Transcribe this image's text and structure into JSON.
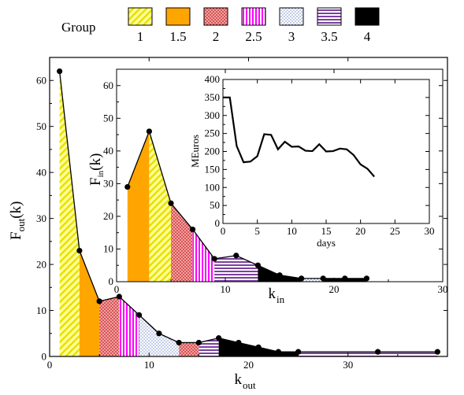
{
  "chart_data": {
    "legend": {
      "title": "Group",
      "groups": [
        {
          "label": "1",
          "value": 1,
          "fill": "#ffff80",
          "pattern": "diag-yellow"
        },
        {
          "label": "1.5",
          "value": 1.5,
          "fill": "#ffa500",
          "pattern": "solid-orange"
        },
        {
          "label": "2",
          "value": 2,
          "fill": "#f08080",
          "pattern": "dots-red"
        },
        {
          "label": "2.5",
          "value": 2.5,
          "fill": "#ff00ff",
          "pattern": "vlines-magenta"
        },
        {
          "label": "3",
          "value": 3,
          "fill": "#d0d8f0",
          "pattern": "dots-blue"
        },
        {
          "label": "3.5",
          "value": 3.5,
          "fill": "#7b3fa0",
          "pattern": "hlines-purple"
        },
        {
          "label": "4",
          "value": 4,
          "fill": "#000000",
          "pattern": "solid-black"
        }
      ]
    },
    "charts": [
      {
        "id": "main",
        "type": "area",
        "xlabel": "k",
        "xlabel_sub": "out",
        "ylabel": "F",
        "ylabel_sub": "out",
        "ylabel_suffix": "(k)",
        "xlim": [
          0,
          40
        ],
        "ylim": [
          0,
          65
        ],
        "xticks": [
          0,
          10,
          20,
          30,
          40
        ],
        "xtick_labels": [
          "0",
          "10",
          "20",
          "30",
          ""
        ],
        "yticks": [
          0,
          10,
          20,
          30,
          40,
          50,
          60
        ],
        "points": [
          {
            "x": 1,
            "y": 62
          },
          {
            "x": 3,
            "y": 23
          },
          {
            "x": 5,
            "y": 12
          },
          {
            "x": 7,
            "y": 13
          },
          {
            "x": 9,
            "y": 9
          },
          {
            "x": 11,
            "y": 5
          },
          {
            "x": 13,
            "y": 3
          },
          {
            "x": 15,
            "y": 3
          },
          {
            "x": 17,
            "y": 4
          },
          {
            "x": 19,
            "y": 3
          },
          {
            "x": 21,
            "y": 2
          },
          {
            "x": 23,
            "y": 1
          },
          {
            "x": 25,
            "y": 1
          },
          {
            "x": 33,
            "y": 1
          },
          {
            "x": 39,
            "y": 1
          }
        ],
        "segments": [
          {
            "x0": 1,
            "x1": 3,
            "group": "1"
          },
          {
            "x0": 3,
            "x1": 5,
            "group": "1.5"
          },
          {
            "x0": 5,
            "x1": 7,
            "group": "2"
          },
          {
            "x0": 7,
            "x1": 9,
            "group": "2.5"
          },
          {
            "x0": 9,
            "x1": 13,
            "group": "3"
          },
          {
            "x0": 13,
            "x1": 15,
            "group": "2"
          },
          {
            "x0": 15,
            "x1": 17,
            "group": "3.5"
          },
          {
            "x0": 17,
            "x1": 25,
            "group": "4"
          },
          {
            "x0": 25,
            "x1": 39,
            "group": "3.5"
          }
        ]
      },
      {
        "id": "inset1",
        "type": "area",
        "xlabel": "k",
        "xlabel_sub": "in",
        "ylabel": "F",
        "ylabel_sub": "in",
        "ylabel_suffix": "(k)",
        "xlim": [
          0,
          30
        ],
        "ylim": [
          0,
          65
        ],
        "xticks": [
          0,
          10,
          20,
          30
        ],
        "xtick_labels": [
          "0",
          "10",
          "20",
          "30"
        ],
        "yticks": [
          0,
          10,
          20,
          30,
          40,
          50,
          60
        ],
        "points": [
          {
            "x": 1,
            "y": 29
          },
          {
            "x": 3,
            "y": 46
          },
          {
            "x": 5,
            "y": 24
          },
          {
            "x": 7,
            "y": 16
          },
          {
            "x": 9,
            "y": 7
          },
          {
            "x": 11,
            "y": 8
          },
          {
            "x": 13,
            "y": 5
          },
          {
            "x": 15,
            "y": 2
          },
          {
            "x": 17,
            "y": 1
          },
          {
            "x": 19,
            "y": 1
          },
          {
            "x": 21,
            "y": 1
          },
          {
            "x": 23,
            "y": 1
          }
        ],
        "segments": [
          {
            "x0": 1,
            "x1": 3,
            "group": "1.5"
          },
          {
            "x0": 3,
            "x1": 5,
            "group": "1"
          },
          {
            "x0": 5,
            "x1": 7,
            "group": "2"
          },
          {
            "x0": 7,
            "x1": 9,
            "group": "2.5"
          },
          {
            "x0": 9,
            "x1": 13,
            "group": "3.5"
          },
          {
            "x0": 13,
            "x1": 17,
            "group": "4"
          },
          {
            "x0": 17,
            "x1": 19,
            "group": "3"
          },
          {
            "x0": 19,
            "x1": 23,
            "group": "4"
          }
        ]
      },
      {
        "id": "inset2",
        "type": "line",
        "xlabel": "days",
        "ylabel": "MEuros",
        "xlim": [
          0,
          30
        ],
        "ylim": [
          0,
          400
        ],
        "xticks": [
          0,
          5,
          10,
          15,
          20,
          25,
          30
        ],
        "yticks": [
          0,
          50,
          100,
          150,
          200,
          250,
          300,
          350,
          400
        ],
        "points": [
          {
            "x": 0,
            "y": 350
          },
          {
            "x": 1,
            "y": 350
          },
          {
            "x": 2,
            "y": 215
          },
          {
            "x": 3,
            "y": 170
          },
          {
            "x": 4,
            "y": 172
          },
          {
            "x": 5,
            "y": 187
          },
          {
            "x": 6,
            "y": 248
          },
          {
            "x": 7,
            "y": 246
          },
          {
            "x": 8,
            "y": 206
          },
          {
            "x": 9,
            "y": 227
          },
          {
            "x": 10,
            "y": 213
          },
          {
            "x": 11,
            "y": 214
          },
          {
            "x": 12,
            "y": 202
          },
          {
            "x": 13,
            "y": 201
          },
          {
            "x": 14,
            "y": 220
          },
          {
            "x": 15,
            "y": 200
          },
          {
            "x": 16,
            "y": 201
          },
          {
            "x": 17,
            "y": 208
          },
          {
            "x": 18,
            "y": 206
          },
          {
            "x": 19,
            "y": 190
          },
          {
            "x": 20,
            "y": 164
          },
          {
            "x": 21,
            "y": 152
          },
          {
            "x": 22,
            "y": 130
          }
        ]
      }
    ]
  }
}
